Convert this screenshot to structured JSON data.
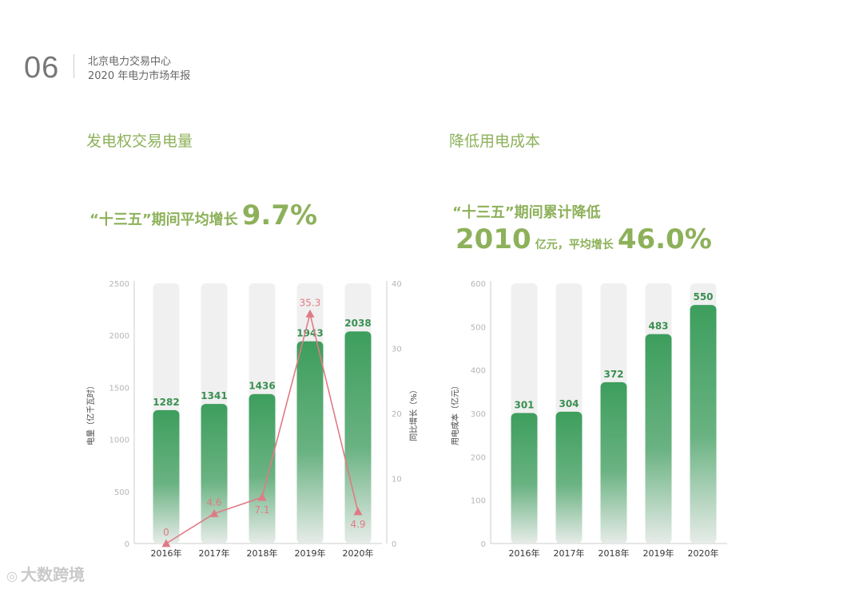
{
  "header": {
    "page_number": "06",
    "line1": "北京电力交易中心",
    "line2": "2020 年电力市场年报"
  },
  "left": {
    "title": "发电权交易电量",
    "highlight_prefix": "“十三五”期间平均增长",
    "highlight_value": "9.7%"
  },
  "right": {
    "title": "降低用电成本",
    "highlight_line1": "“十三五”期间累计降低",
    "highlight_value1": "2010",
    "highlight_mid": "亿元，平均增长",
    "highlight_value2": "46.0%"
  },
  "watermark": {
    "text": "大数跨境",
    "icon_name": "logo-icon"
  },
  "colors": {
    "accent": "#8db15a",
    "bar": "#3d9e5d",
    "line": "#e07a85",
    "track": "#f0f0f0"
  },
  "chart_data": [
    {
      "type": "bar",
      "categories": [
        "2016年",
        "2017年",
        "2018年",
        "2019年",
        "2020年"
      ],
      "series": [
        {
          "values": [
            1282,
            1341,
            1436,
            1943,
            2038
          ]
        }
      ],
      "line_series": {
        "values": [
          0,
          4.6,
          7.1,
          35.3,
          4.9
        ]
      },
      "ylabel": "电量（亿千瓦时）",
      "y2label": "同比增长（%）",
      "ylim": [
        0,
        2500
      ],
      "yticks": [
        0,
        500,
        1000,
        1500,
        2000,
        2500
      ],
      "y2lim": [
        0,
        40
      ],
      "y2ticks": [
        0,
        10,
        20,
        30,
        40
      ],
      "grid": false,
      "legend": "none"
    },
    {
      "type": "bar",
      "categories": [
        "2016年",
        "2017年",
        "2018年",
        "2019年",
        "2020年"
      ],
      "series": [
        {
          "values": [
            301,
            304,
            372,
            483,
            550
          ]
        }
      ],
      "ylabel": "用电成本（亿元）",
      "ylim": [
        0,
        600
      ],
      "yticks": [
        0,
        100,
        200,
        300,
        400,
        500,
        600
      ],
      "grid": false,
      "legend": "none"
    }
  ]
}
